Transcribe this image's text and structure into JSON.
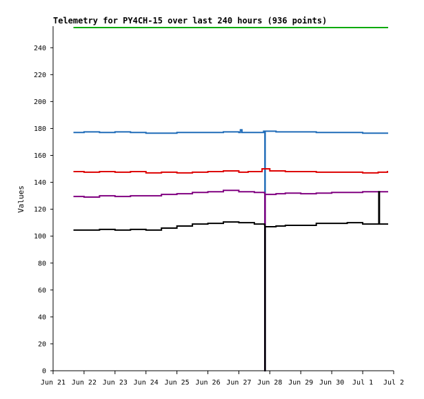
{
  "chart_data": {
    "type": "line",
    "title": "Telemetry for PY4CH-15 over last 240 hours (936 points)",
    "xlabel": "",
    "ylabel": "Values",
    "xlim": [
      0,
      11
    ],
    "ylim": [
      0,
      256
    ],
    "x_tick_values": [
      0,
      1,
      2,
      3,
      4,
      5,
      6,
      7,
      8,
      9,
      10,
      11
    ],
    "x_tick_labels": [
      "Jun 21",
      "Jun 22",
      "Jun 23",
      "Jun 24",
      "Jun 25",
      "Jun 26",
      "Jun 27",
      "Jun 28",
      "Jun 29",
      "Jun 30",
      "Jul 1",
      "Jul 2"
    ],
    "y_ticks": [
      0,
      20,
      40,
      60,
      80,
      100,
      120,
      140,
      160,
      180,
      200,
      220,
      240
    ],
    "grid": false,
    "legend": "none",
    "colors": {
      "axis": "#000000",
      "background": "#ffffff"
    },
    "series": [
      {
        "color": "#00aa00",
        "points": [
          [
            0.68,
            255
          ],
          [
            10.8,
            255
          ]
        ]
      },
      {
        "color": "#1e6bb8",
        "points": [
          [
            0.68,
            177
          ],
          [
            1.0,
            177.5
          ],
          [
            1.5,
            177
          ],
          [
            2.0,
            177.5
          ],
          [
            2.5,
            177
          ],
          [
            3.0,
            176.5
          ],
          [
            3.5,
            176.5
          ],
          [
            4.0,
            177
          ],
          [
            4.5,
            177
          ],
          [
            5.0,
            177
          ],
          [
            5.5,
            177.5
          ],
          [
            6.0,
            177
          ],
          [
            6.05,
            179
          ],
          [
            6.1,
            177
          ],
          [
            6.8,
            178
          ],
          [
            6.83,
            177
          ],
          [
            6.84,
            0
          ],
          [
            6.85,
            178
          ],
          [
            7.2,
            177.5
          ],
          [
            7.5,
            177.5
          ],
          [
            8.0,
            177.5
          ],
          [
            8.5,
            177
          ],
          [
            9.0,
            177
          ],
          [
            9.5,
            177
          ],
          [
            10.0,
            176.5
          ],
          [
            10.8,
            176.5
          ]
        ]
      },
      {
        "color": "#dd0000",
        "points": [
          [
            0.68,
            148
          ],
          [
            1.0,
            147.5
          ],
          [
            1.5,
            148
          ],
          [
            2.0,
            147.5
          ],
          [
            2.5,
            148
          ],
          [
            3.0,
            147
          ],
          [
            3.5,
            147.5
          ],
          [
            4.0,
            147
          ],
          [
            4.5,
            147.5
          ],
          [
            5.0,
            148
          ],
          [
            5.5,
            148.5
          ],
          [
            6.0,
            147.5
          ],
          [
            6.3,
            148
          ],
          [
            6.75,
            150
          ],
          [
            7.0,
            148.5
          ],
          [
            7.5,
            148
          ],
          [
            8.0,
            148
          ],
          [
            8.5,
            147.5
          ],
          [
            9.0,
            147.5
          ],
          [
            9.5,
            147.5
          ],
          [
            10.0,
            147
          ],
          [
            10.5,
            147.5
          ],
          [
            10.8,
            148
          ]
        ]
      },
      {
        "color": "#800080",
        "points": [
          [
            0.68,
            129.5
          ],
          [
            1.0,
            129
          ],
          [
            1.5,
            130
          ],
          [
            2.0,
            129.5
          ],
          [
            2.5,
            130
          ],
          [
            3.0,
            130
          ],
          [
            3.5,
            131
          ],
          [
            4.0,
            131.5
          ],
          [
            4.5,
            132.5
          ],
          [
            5.0,
            133
          ],
          [
            5.5,
            134
          ],
          [
            6.0,
            133
          ],
          [
            6.5,
            132.5
          ],
          [
            6.83,
            132
          ],
          [
            6.84,
            0
          ],
          [
            6.85,
            131
          ],
          [
            7.2,
            131.5
          ],
          [
            7.5,
            132
          ],
          [
            8.0,
            131.5
          ],
          [
            8.5,
            132
          ],
          [
            9.0,
            132.5
          ],
          [
            9.5,
            132.5
          ],
          [
            10.0,
            133
          ],
          [
            10.5,
            133
          ],
          [
            10.8,
            133
          ]
        ]
      },
      {
        "color": "#000000",
        "points": [
          [
            0.68,
            104.5
          ],
          [
            1.0,
            104.5
          ],
          [
            1.5,
            105
          ],
          [
            2.0,
            104.5
          ],
          [
            2.5,
            105
          ],
          [
            3.0,
            104.5
          ],
          [
            3.5,
            106
          ],
          [
            4.0,
            107.5
          ],
          [
            4.5,
            109
          ],
          [
            5.0,
            109.5
          ],
          [
            5.5,
            110.5
          ],
          [
            6.0,
            110
          ],
          [
            6.5,
            109
          ],
          [
            6.83,
            108.5
          ],
          [
            6.84,
            0
          ],
          [
            6.85,
            107
          ],
          [
            7.2,
            107.5
          ],
          [
            7.5,
            108
          ],
          [
            8.0,
            108
          ],
          [
            8.5,
            109.5
          ],
          [
            9.0,
            109.5
          ],
          [
            9.5,
            110
          ],
          [
            10.0,
            109
          ],
          [
            10.5,
            109
          ],
          [
            10.52,
            133
          ],
          [
            10.54,
            109
          ],
          [
            10.8,
            109
          ]
        ]
      }
    ]
  }
}
